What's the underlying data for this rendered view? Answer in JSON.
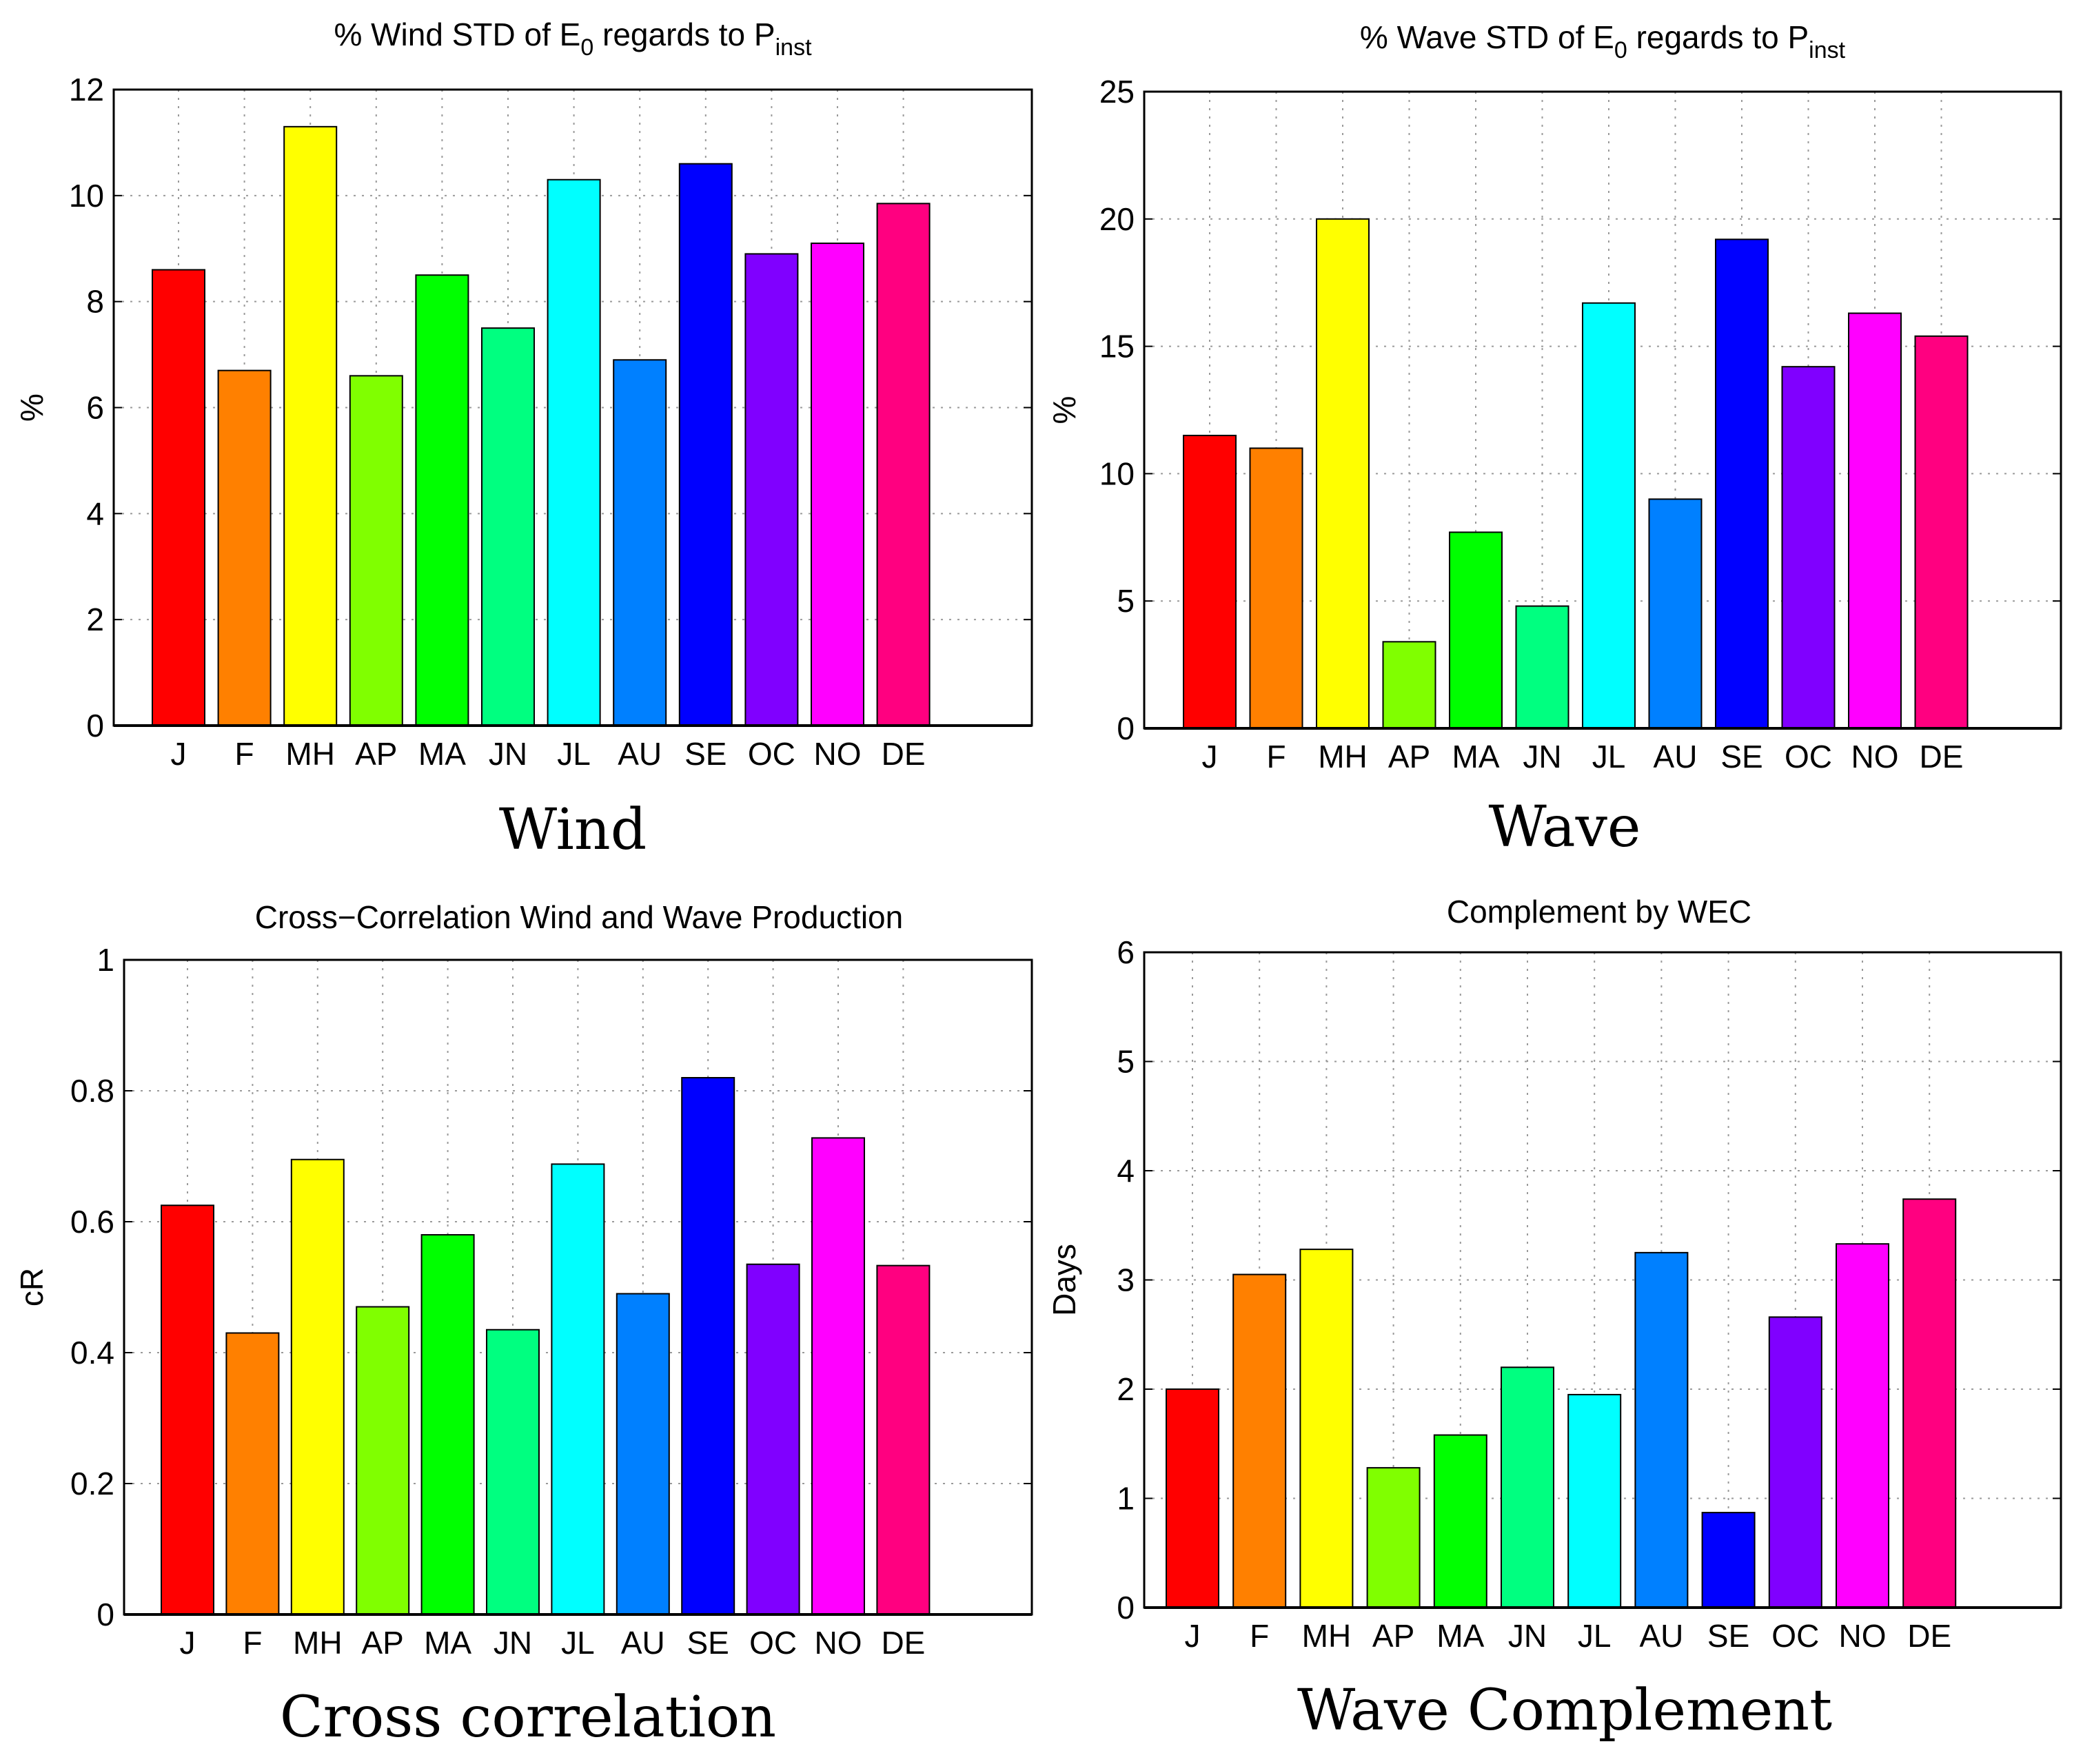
{
  "chart_data": [
    {
      "type": "bar",
      "title": "% Wind STD of E",
      "title_sub0": "0",
      "title_mid": " regards to P",
      "title_sub1": "inst",
      "ylabel": "%",
      "caption": "Wind",
      "categories": [
        "J",
        "F",
        "MH",
        "AP",
        "MA",
        "JN",
        "JL",
        "AU",
        "SE",
        "OC",
        "NO",
        "DE"
      ],
      "values": [
        8.6,
        6.7,
        11.3,
        6.6,
        8.5,
        7.5,
        10.3,
        6.9,
        10.6,
        8.9,
        9.1,
        9.85
      ],
      "ylim": [
        0,
        12
      ],
      "yticks": [
        0,
        2,
        4,
        6,
        8,
        10,
        12
      ],
      "ytick_labels": [
        "0",
        "2",
        "4",
        "6",
        "8",
        "10",
        "12"
      ],
      "grid": true
    },
    {
      "type": "bar",
      "title": "% Wave STD of E",
      "title_sub0": "0",
      "title_mid": " regards to P",
      "title_sub1": "inst",
      "ylabel": "%",
      "caption": "Wave",
      "categories": [
        "J",
        "F",
        "MH",
        "AP",
        "MA",
        "JN",
        "JL",
        "AU",
        "SE",
        "OC",
        "NO",
        "DE"
      ],
      "values": [
        11.5,
        11.0,
        20.0,
        3.4,
        7.7,
        4.8,
        16.7,
        9.0,
        19.2,
        14.2,
        16.3,
        15.4
      ],
      "ylim": [
        0,
        25
      ],
      "yticks": [
        0,
        5,
        10,
        15,
        20,
        25
      ],
      "ytick_labels": [
        "0",
        "5",
        "10",
        "15",
        "20",
        "25"
      ],
      "grid": true
    },
    {
      "type": "bar",
      "title": "Cross−Correlation Wind and Wave Production",
      "ylabel": "cR",
      "caption": "Cross correlation",
      "categories": [
        "J",
        "F",
        "MH",
        "AP",
        "MA",
        "JN",
        "JL",
        "AU",
        "SE",
        "OC",
        "NO",
        "DE"
      ],
      "values": [
        0.625,
        0.43,
        0.695,
        0.47,
        0.58,
        0.435,
        0.688,
        0.49,
        0.82,
        0.535,
        0.728,
        0.533
      ],
      "ylim": [
        0,
        1
      ],
      "yticks": [
        0,
        0.2,
        0.4,
        0.6,
        0.8,
        1
      ],
      "ytick_labels": [
        "0",
        "0.2",
        "0.4",
        "0.6",
        "0.8",
        "1"
      ],
      "grid": true
    },
    {
      "type": "bar",
      "title": "Complement by WEC",
      "ylabel": "Days",
      "caption": "Wave Complement",
      "categories": [
        "J",
        "F",
        "MH",
        "AP",
        "MA",
        "JN",
        "JL",
        "AU",
        "SE",
        "OC",
        "NO",
        "DE"
      ],
      "values": [
        2.0,
        3.05,
        3.28,
        1.28,
        1.58,
        2.2,
        1.95,
        3.25,
        0.87,
        2.66,
        3.33,
        3.74
      ],
      "ylim": [
        0,
        6
      ],
      "yticks": [
        0,
        1,
        2,
        3,
        4,
        5,
        6
      ],
      "ytick_labels": [
        "0",
        "1",
        "2",
        "3",
        "4",
        "5",
        "6"
      ],
      "grid": true
    }
  ],
  "colors": [
    "#ff0000",
    "#ff8000",
    "#ffff00",
    "#80ff00",
    "#00ff00",
    "#00ff80",
    "#00ffff",
    "#0080ff",
    "#0000ff",
    "#8000ff",
    "#ff00ff",
    "#ff0080"
  ]
}
